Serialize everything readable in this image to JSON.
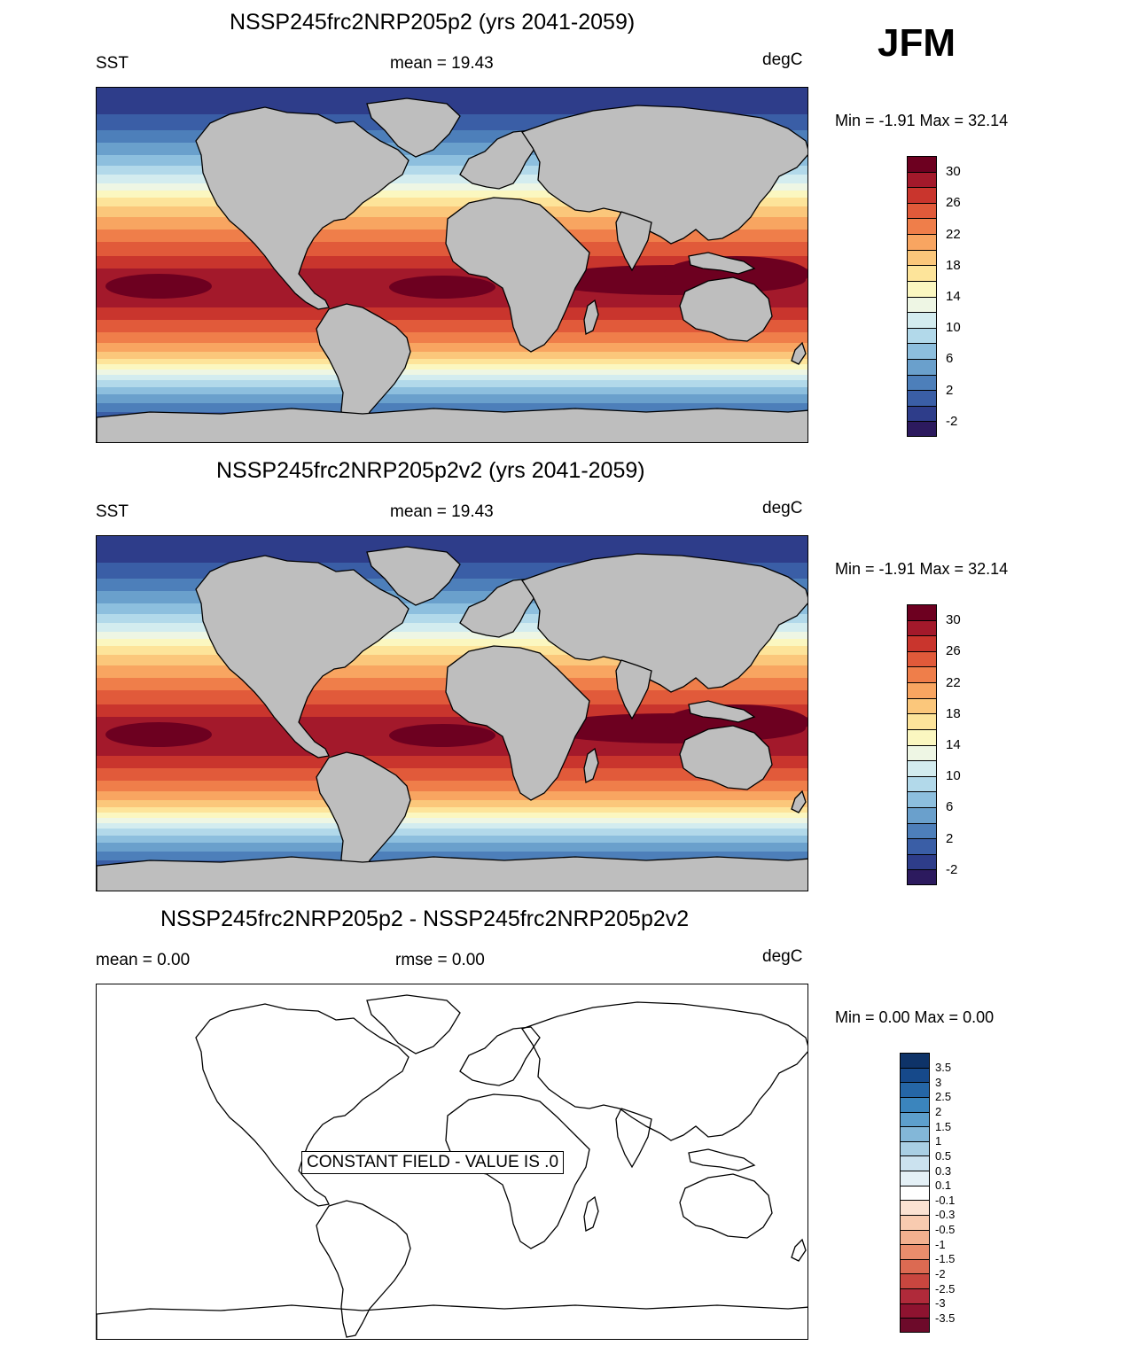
{
  "season": "JFM",
  "panels": [
    {
      "title": "NSSP245frc2NRP205p2 (yrs 2041-2059)",
      "left_label": "SST",
      "center_label": "mean =  19.43",
      "units": "degC",
      "minmax": "Min =  -1.91 Max =  32.14",
      "field": "sst"
    },
    {
      "title": "NSSP245frc2NRP205p2v2 (yrs 2041-2059)",
      "left_label": "SST",
      "center_label": "mean =  19.43",
      "units": "degC",
      "minmax": "Min =  -1.91 Max =  32.14",
      "field": "sst"
    },
    {
      "title": "NSSP245frc2NRP205p2 - NSSP245frc2NRP205p2v2",
      "left_label": "mean =   0.00",
      "center_label": "rmse =   0.00",
      "units": "degC",
      "minmax": "Min =   0.00 Max =   0.00",
      "field": "diff",
      "annotation": "CONSTANT FIELD - VALUE IS .0"
    }
  ],
  "sst_colorbar": {
    "colors": [
      "#2c1a5e",
      "#2e3d8a",
      "#3a5ea6",
      "#4d7fba",
      "#6aa0cc",
      "#8dbfde",
      "#b2d9ea",
      "#d3ecef",
      "#eef6e4",
      "#fbf7c0",
      "#fde49a",
      "#fbc77b",
      "#f8a561",
      "#ef7e4a",
      "#e15a3a",
      "#c9352d",
      "#a3192b",
      "#6d0020"
    ],
    "labels": [
      "30",
      "26",
      "22",
      "18",
      "14",
      "10",
      "6",
      "2",
      "-2"
    ]
  },
  "diff_colorbar": {
    "colors": [
      "#6d0a2a",
      "#8e1330",
      "#b02a3a",
      "#c9463f",
      "#dc6a52",
      "#ea8d6c",
      "#f3b08f",
      "#f8cbb0",
      "#fbe2d2",
      "#ffffff",
      "#e4f0f6",
      "#cbe2ef",
      "#a9cfe4",
      "#83b7d8",
      "#5d9fcc",
      "#3b85bd",
      "#2566a6",
      "#16498a",
      "#0e3368"
    ],
    "labels": [
      "3.5",
      "3",
      "2.5",
      "2",
      "1.5",
      "1",
      "0.5",
      "0.3",
      "0.1",
      "-0.1",
      "-0.3",
      "-0.5",
      "-1",
      "-1.5",
      "-2",
      "-2.5",
      "-3",
      "-3.5"
    ]
  }
}
